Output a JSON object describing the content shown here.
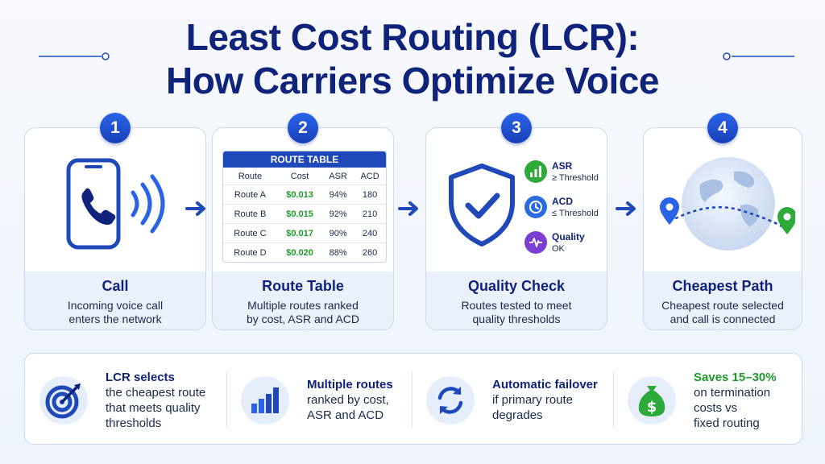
{
  "title": {
    "line1": "Least Cost Routing (LCR):",
    "line2": "How Carriers Optimize Voice"
  },
  "steps": [
    {
      "number": "1",
      "title": "Call",
      "desc_line1": "Incoming voice call",
      "desc_line2": "enters the network",
      "icon": "phone-call-icon"
    },
    {
      "number": "2",
      "title": "Route Table",
      "desc_line1": "Multiple routes ranked",
      "desc_line2": "by cost, ASR and ACD",
      "icon": "route-table"
    },
    {
      "number": "3",
      "title": "Quality Check",
      "desc_line1": "Routes tested to meet",
      "desc_line2": "quality thresholds",
      "icon": "shield-check-icon"
    },
    {
      "number": "4",
      "title": "Cheapest Path",
      "desc_line1": "Cheapest route selected",
      "desc_line2": "and call is connected",
      "icon": "globe-path-icon"
    }
  ],
  "route_table": {
    "title": "ROUTE TABLE",
    "headers": [
      "Route",
      "Cost",
      "ASR",
      "ACD"
    ],
    "rows": [
      [
        "Route A",
        "$0.013",
        "94%",
        "180"
      ],
      [
        "Route B",
        "$0.015",
        "92%",
        "210"
      ],
      [
        "Route C",
        "$0.017",
        "90%",
        "240"
      ],
      [
        "Route D",
        "$0.020",
        "88%",
        "260"
      ]
    ]
  },
  "quality": [
    {
      "label": "ASR",
      "detail": "≥ Threshold",
      "icon": "bar-signal-icon",
      "color": "#2eaa3a"
    },
    {
      "label": "ACD",
      "detail": "≤ Threshold",
      "icon": "clock-icon",
      "color": "#2a6be0"
    },
    {
      "label": "Quality",
      "detail": "OK",
      "icon": "waveform-icon",
      "color": "#7a3fd0"
    }
  ],
  "features": [
    {
      "heading": "LCR selects",
      "lines": [
        "the cheapest route",
        "that meets quality",
        "thresholds"
      ],
      "icon": "target-icon"
    },
    {
      "heading": "Multiple routes",
      "lines": [
        "ranked by cost,",
        "ASR and ACD"
      ],
      "icon": "bar-chart-icon"
    },
    {
      "heading": "Automatic failover",
      "lines": [
        "if primary route",
        "degrades"
      ],
      "icon": "refresh-icon"
    },
    {
      "heading": "Saves 15–30%",
      "lines": [
        "on termination",
        "costs vs",
        "fixed routing"
      ],
      "icon": "money-bag-icon",
      "heading_color": "#1e9a2a"
    }
  ],
  "colors": {
    "navy": "#10237a",
    "accent_blue": "#1f49b8",
    "green": "#1e9a2a"
  }
}
